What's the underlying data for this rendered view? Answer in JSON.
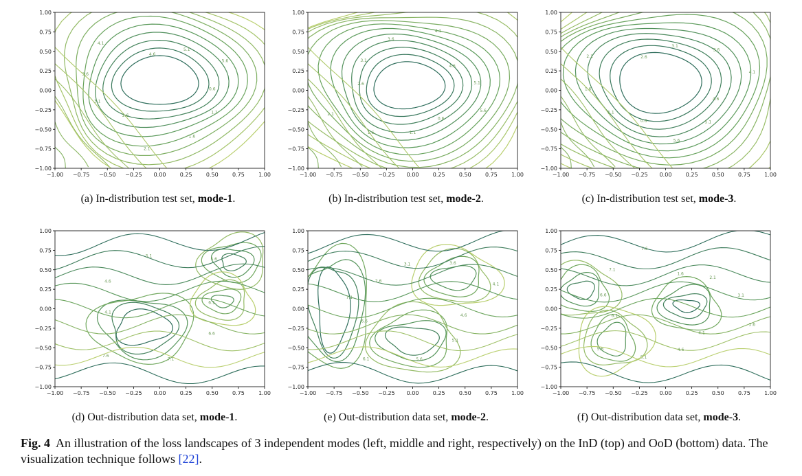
{
  "panels": [
    {
      "id": "a",
      "caption_prefix": "(a) In-distribution test set, ",
      "caption_bold": "mode-1",
      "caption_suffix": ".",
      "ticks": [
        "−1.00",
        "−0.75",
        "−0.50",
        "−0.25",
        "0.00",
        "0.25",
        "0.50",
        "0.75",
        "1.00"
      ],
      "labels": [
        "0.6",
        "1.1",
        "1.6",
        "2.1",
        "2.6",
        "3.1",
        "3.6",
        "4.1",
        "4.6",
        "5.1",
        "5.6"
      ]
    },
    {
      "id": "b",
      "caption_prefix": "(b) In-distribution test set, ",
      "caption_bold": "mode-2",
      "caption_suffix": ".",
      "ticks": [
        "−1.00",
        "−0.75",
        "−0.50",
        "−0.25",
        "0.00",
        "0.25",
        "0.50",
        "0.75",
        "1.00"
      ],
      "labels": [
        "0.6",
        "1.1",
        "1.6",
        "2.1",
        "2.6",
        "3.1",
        "3.6",
        "4.1",
        "4.6",
        "5.1",
        "5.6"
      ]
    },
    {
      "id": "c",
      "caption_prefix": "(c) In-distribution test set, ",
      "caption_bold": "mode-3",
      "caption_suffix": ".",
      "ticks": [
        "−1.00",
        "−0.75",
        "−0.50",
        "−0.25",
        "0.00",
        "0.25",
        "0.50",
        "0.75",
        "1.00"
      ],
      "labels": [
        "0.6",
        "1.1",
        "1.6",
        "2.1",
        "2.6",
        "3.1",
        "3.6",
        "4.1",
        "4.6",
        "5.1",
        "5.6"
      ]
    },
    {
      "id": "d",
      "caption_prefix": "(d) Out-distribution data set, ",
      "caption_bold": "mode-1",
      "caption_suffix": ".",
      "ticks": [
        "−1.00",
        "−0.75",
        "−0.50",
        "−0.25",
        "0.00",
        "0.25",
        "0.50",
        "0.75",
        "1.00"
      ],
      "labels": [
        "4.1",
        "4.6",
        "5.1",
        "5.6",
        "6.1",
        "6.6",
        "7.1",
        "7.6"
      ]
    },
    {
      "id": "e",
      "caption_prefix": "(e) Out-distribution data set, ",
      "caption_bold": "mode-2",
      "caption_suffix": ".",
      "ticks": [
        "−1.00",
        "−0.75",
        "−0.50",
        "−0.25",
        "0.00",
        "0.25",
        "0.50",
        "0.75",
        "1.00"
      ],
      "labels": [
        "2.6",
        "3.1",
        "3.6",
        "4.1",
        "4.6",
        "5.1",
        "5.6",
        "6.1",
        "6.6",
        "7.1"
      ]
    },
    {
      "id": "f",
      "caption_prefix": "(f) Out-distribution data set, ",
      "caption_bold": "mode-3",
      "caption_suffix": ".",
      "ticks": [
        "−1.00",
        "−0.75",
        "−0.50",
        "−0.25",
        "0.00",
        "0.25",
        "0.50",
        "0.75",
        "1.00"
      ],
      "labels": [
        "1.6",
        "2.1",
        "3.1",
        "3.6",
        "4.1",
        "4.6",
        "5.1",
        "5.6",
        "6.1",
        "6.6",
        "7.1",
        "7.6"
      ]
    }
  ],
  "caption": {
    "label": "Fig. 4",
    "text_before_ref": "An illustration of the loss landscapes of 3 independent modes (left, middle and right, respectively) on the InD (top) and OoD (bottom) data. The visualization technique follows ",
    "ref": "[22]",
    "text_after_ref": "."
  },
  "colors": {
    "dark": "#2f6e5c",
    "mid": "#5f9e5a",
    "light": "#b9cf6e",
    "axis": "#000000"
  }
}
